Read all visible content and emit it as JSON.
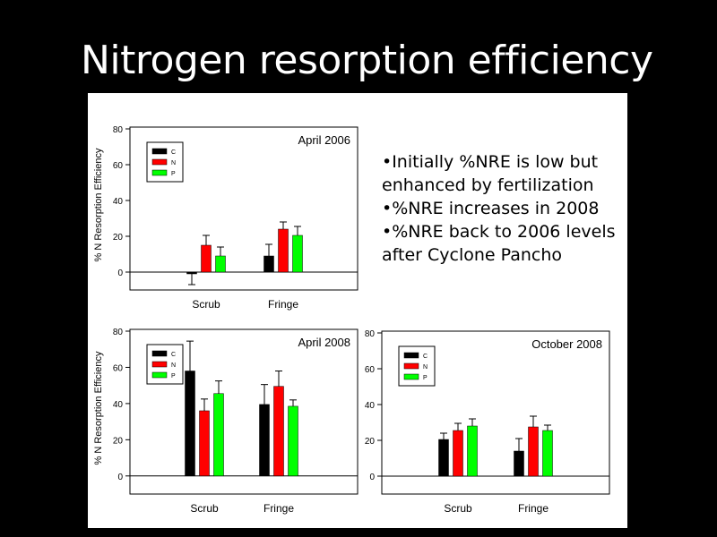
{
  "title": "Nitrogen resorption efficiency",
  "bullets": [
    "•Initially %NRE is low but enhanced by fertilization",
    "•%NRE increases in 2008",
    "•%NRE back to 2006 levels after Cyclone Pancho"
  ],
  "colors": {
    "C": "#000000",
    "N": "#ff0000",
    "P": "#00ff00"
  },
  "chart_data": [
    {
      "type": "bar",
      "title": "April 2006",
      "ylabel": "% N Resorption Efficiency",
      "xlabel": "",
      "categories": [
        "Scrub",
        "Fringe"
      ],
      "ylim": [
        -10,
        80
      ],
      "yticks": [
        0,
        20,
        40,
        60,
        80
      ],
      "legend": "top-left",
      "series": [
        {
          "name": "C",
          "values": [
            -1,
            9
          ],
          "errors": [
            6,
            6.5
          ]
        },
        {
          "name": "N",
          "values": [
            15,
            24
          ],
          "errors": [
            5.5,
            4
          ]
        },
        {
          "name": "P",
          "values": [
            9,
            20.5
          ],
          "errors": [
            5,
            5
          ]
        }
      ]
    },
    {
      "type": "bar",
      "title": "April 2008",
      "ylabel": "% N Resorption Efficiency",
      "xlabel": "",
      "categories": [
        "Scrub",
        "Fringe"
      ],
      "ylim": [
        -10,
        80
      ],
      "yticks": [
        0,
        20,
        40,
        60,
        80
      ],
      "legend": "top-left",
      "series": [
        {
          "name": "C",
          "values": [
            58,
            39.5
          ],
          "errors": [
            16.5,
            11
          ]
        },
        {
          "name": "N",
          "values": [
            36,
            49.5
          ],
          "errors": [
            6.5,
            8.5
          ]
        },
        {
          "name": "P",
          "values": [
            45.5,
            38.5
          ],
          "errors": [
            7,
            3.5
          ]
        }
      ]
    },
    {
      "type": "bar",
      "title": "October 2008",
      "ylabel": "",
      "xlabel": "",
      "categories": [
        "Scrub",
        "Fringe"
      ],
      "ylim": [
        -10,
        80
      ],
      "yticks": [
        0,
        20,
        40,
        60,
        80
      ],
      "legend": "top-left",
      "series": [
        {
          "name": "C",
          "values": [
            20.5,
            14
          ],
          "errors": [
            3.5,
            7
          ]
        },
        {
          "name": "N",
          "values": [
            25.5,
            27.5
          ],
          "errors": [
            4,
            6
          ]
        },
        {
          "name": "P",
          "values": [
            28,
            25.5
          ],
          "errors": [
            4,
            3
          ]
        }
      ]
    }
  ]
}
